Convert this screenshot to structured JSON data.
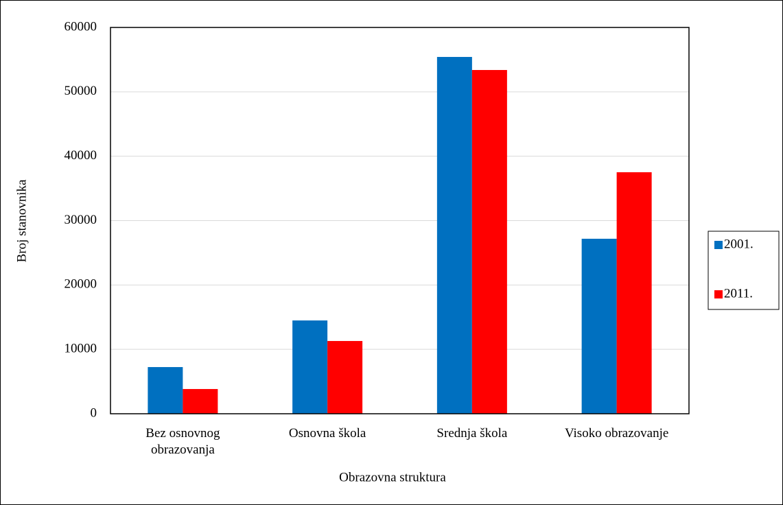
{
  "chart_data": {
    "type": "bar",
    "x_label": "Obrazovna struktura",
    "y_label": "Broj stanovnika",
    "categories": [
      "Bez osnovnog obrazovanja",
      "Osnovna škola",
      "Srednja škola",
      "Visoko obrazovanje"
    ],
    "series": [
      {
        "name": "2001.",
        "color": "#0070c0",
        "values": [
          7250,
          14490,
          55420,
          27180
        ]
      },
      {
        "name": "2011.",
        "color": "#ff0000",
        "values": [
          3840,
          11300,
          53390,
          37510
        ]
      }
    ],
    "ylim": [
      0,
      60000
    ],
    "yticks": [
      0,
      10000,
      20000,
      30000,
      40000,
      50000,
      60000
    ],
    "grid": true,
    "legend": "right"
  }
}
